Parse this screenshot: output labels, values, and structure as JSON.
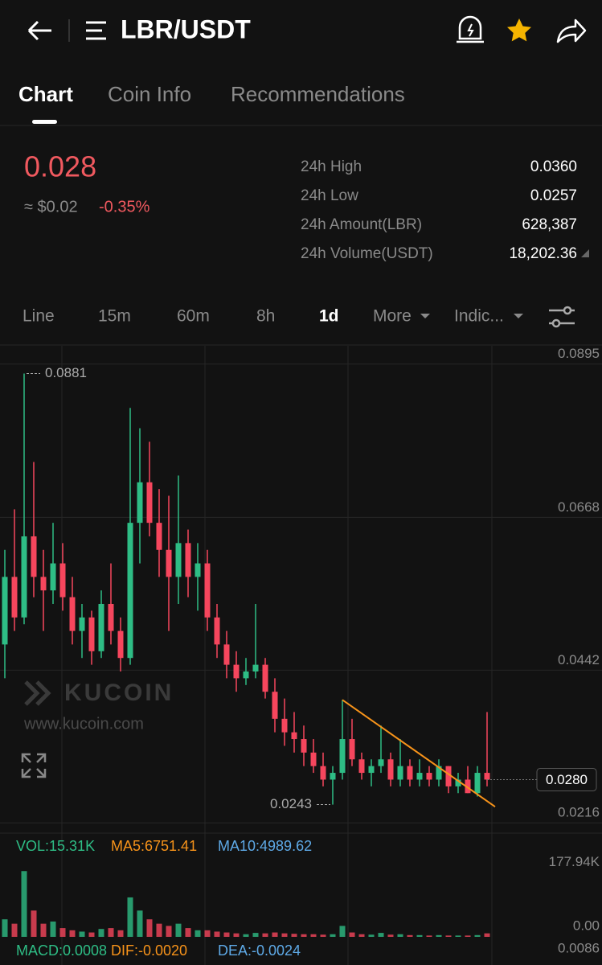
{
  "header": {
    "title": "LBR/USDT"
  },
  "tabs": [
    "Chart",
    "Coin Info",
    "Recommendations"
  ],
  "price": {
    "last": "0.028",
    "usd": "≈ $0.02",
    "change": "-0.35%"
  },
  "stats": [
    {
      "label": "24h High",
      "value": "0.0360"
    },
    {
      "label": "24h Low",
      "value": "0.0257"
    },
    {
      "label": "24h Amount(LBR)",
      "value": "628,387"
    },
    {
      "label": "24h Volume(USDT)",
      "value": "18,202.36"
    }
  ],
  "timeframes": [
    "Line",
    "15m",
    "60m",
    "8h",
    "1d",
    "More",
    "Indic..."
  ],
  "watermark": {
    "brand": "KUCOIN",
    "url": "www.kucoin.com"
  },
  "chart_data": {
    "type": "candlestick",
    "open": [
      0.048,
      0.058,
      0.052,
      0.064,
      0.058,
      0.056,
      0.06,
      0.055,
      0.05,
      0.052,
      0.047,
      0.054,
      0.05,
      0.046,
      0.066,
      0.072,
      0.066,
      0.062,
      0.058,
      0.063,
      0.058,
      0.06,
      0.052,
      0.048,
      0.045,
      0.043,
      0.044,
      0.045,
      0.041,
      0.037,
      0.035,
      0.034,
      0.032,
      0.03,
      0.028,
      0.029,
      0.034,
      0.031,
      0.029,
      0.03,
      0.031,
      0.028,
      0.03,
      0.028,
      0.029,
      0.028,
      0.03,
      0.027,
      0.028,
      0.026,
      0.029
    ],
    "high": [
      0.062,
      0.068,
      0.0881,
      0.075,
      0.062,
      0.066,
      0.063,
      0.058,
      0.054,
      0.053,
      0.056,
      0.06,
      0.052,
      0.083,
      0.08,
      0.078,
      0.071,
      0.07,
      0.073,
      0.065,
      0.063,
      0.062,
      0.054,
      0.05,
      0.047,
      0.046,
      0.054,
      0.046,
      0.043,
      0.04,
      0.038,
      0.036,
      0.034,
      0.032,
      0.03,
      0.0398,
      0.037,
      0.032,
      0.031,
      0.036,
      0.032,
      0.034,
      0.031,
      0.031,
      0.03,
      0.031,
      0.03,
      0.029,
      0.03,
      0.03,
      0.038
    ],
    "low": [
      0.043,
      0.05,
      0.051,
      0.055,
      0.05,
      0.054,
      0.053,
      0.048,
      0.046,
      0.045,
      0.046,
      0.048,
      0.044,
      0.045,
      0.06,
      0.064,
      0.058,
      0.05,
      0.054,
      0.055,
      0.053,
      0.05,
      0.046,
      0.043,
      0.041,
      0.042,
      0.043,
      0.04,
      0.035,
      0.033,
      0.032,
      0.03,
      0.029,
      0.027,
      0.0243,
      0.028,
      0.03,
      0.028,
      0.027,
      0.029,
      0.027,
      0.027,
      0.027,
      0.027,
      0.027,
      0.027,
      0.026,
      0.026,
      0.026,
      0.0255,
      0.027
    ],
    "close": [
      0.058,
      0.052,
      0.064,
      0.058,
      0.056,
      0.06,
      0.055,
      0.05,
      0.052,
      0.047,
      0.054,
      0.05,
      0.046,
      0.066,
      0.072,
      0.066,
      0.062,
      0.058,
      0.063,
      0.058,
      0.06,
      0.052,
      0.048,
      0.045,
      0.043,
      0.044,
      0.045,
      0.041,
      0.037,
      0.035,
      0.034,
      0.032,
      0.03,
      0.028,
      0.029,
      0.034,
      0.031,
      0.029,
      0.03,
      0.031,
      0.028,
      0.03,
      0.028,
      0.029,
      0.028,
      0.03,
      0.027,
      0.028,
      0.026,
      0.029,
      0.028
    ],
    "volume": [
      40000,
      30000,
      150000,
      60000,
      30000,
      35000,
      20000,
      15000,
      12000,
      10000,
      18000,
      20000,
      15000,
      90000,
      60000,
      40000,
      30000,
      25000,
      30000,
      20000,
      15000,
      15000,
      12000,
      10000,
      8000,
      6000,
      9000,
      8000,
      10000,
      8000,
      7000,
      6000,
      6000,
      5000,
      6000,
      25000,
      10000,
      6000,
      5000,
      9000,
      5000,
      6000,
      4000,
      4000,
      3000,
      4000,
      3000,
      3000,
      3000,
      4000,
      8000
    ],
    "ylim": [
      0.0202,
      0.0922
    ],
    "yticks": [
      0.0216,
      0.0442,
      0.0668,
      0.0895
    ],
    "up_color": "#2ebd85",
    "down_color": "#f6465d",
    "max_label": 0.0881,
    "min_label": 0.0243,
    "last_price": {
      "value": 0.028,
      "label": "0.0280"
    },
    "trendline": {
      "color": "#f7931a",
      "from": {
        "index": 35,
        "price": 0.0398
      },
      "to": {
        "index": 50,
        "price": 0.0247
      }
    },
    "volume_ylim": [
      0,
      177940
    ],
    "volume_yticks": [
      {
        "value": 177940,
        "label": "177.94K"
      },
      {
        "value": 0,
        "label": "0.00"
      }
    ]
  },
  "volume_legend": [
    "VOL:15.31K",
    "MA5:6751.41",
    "MA10:4989.62"
  ],
  "macd_legend": [
    "MACD:0.0008",
    "DIF:-0.0020",
    "DEA:-0.0024"
  ],
  "macd_axis": "0.0086"
}
